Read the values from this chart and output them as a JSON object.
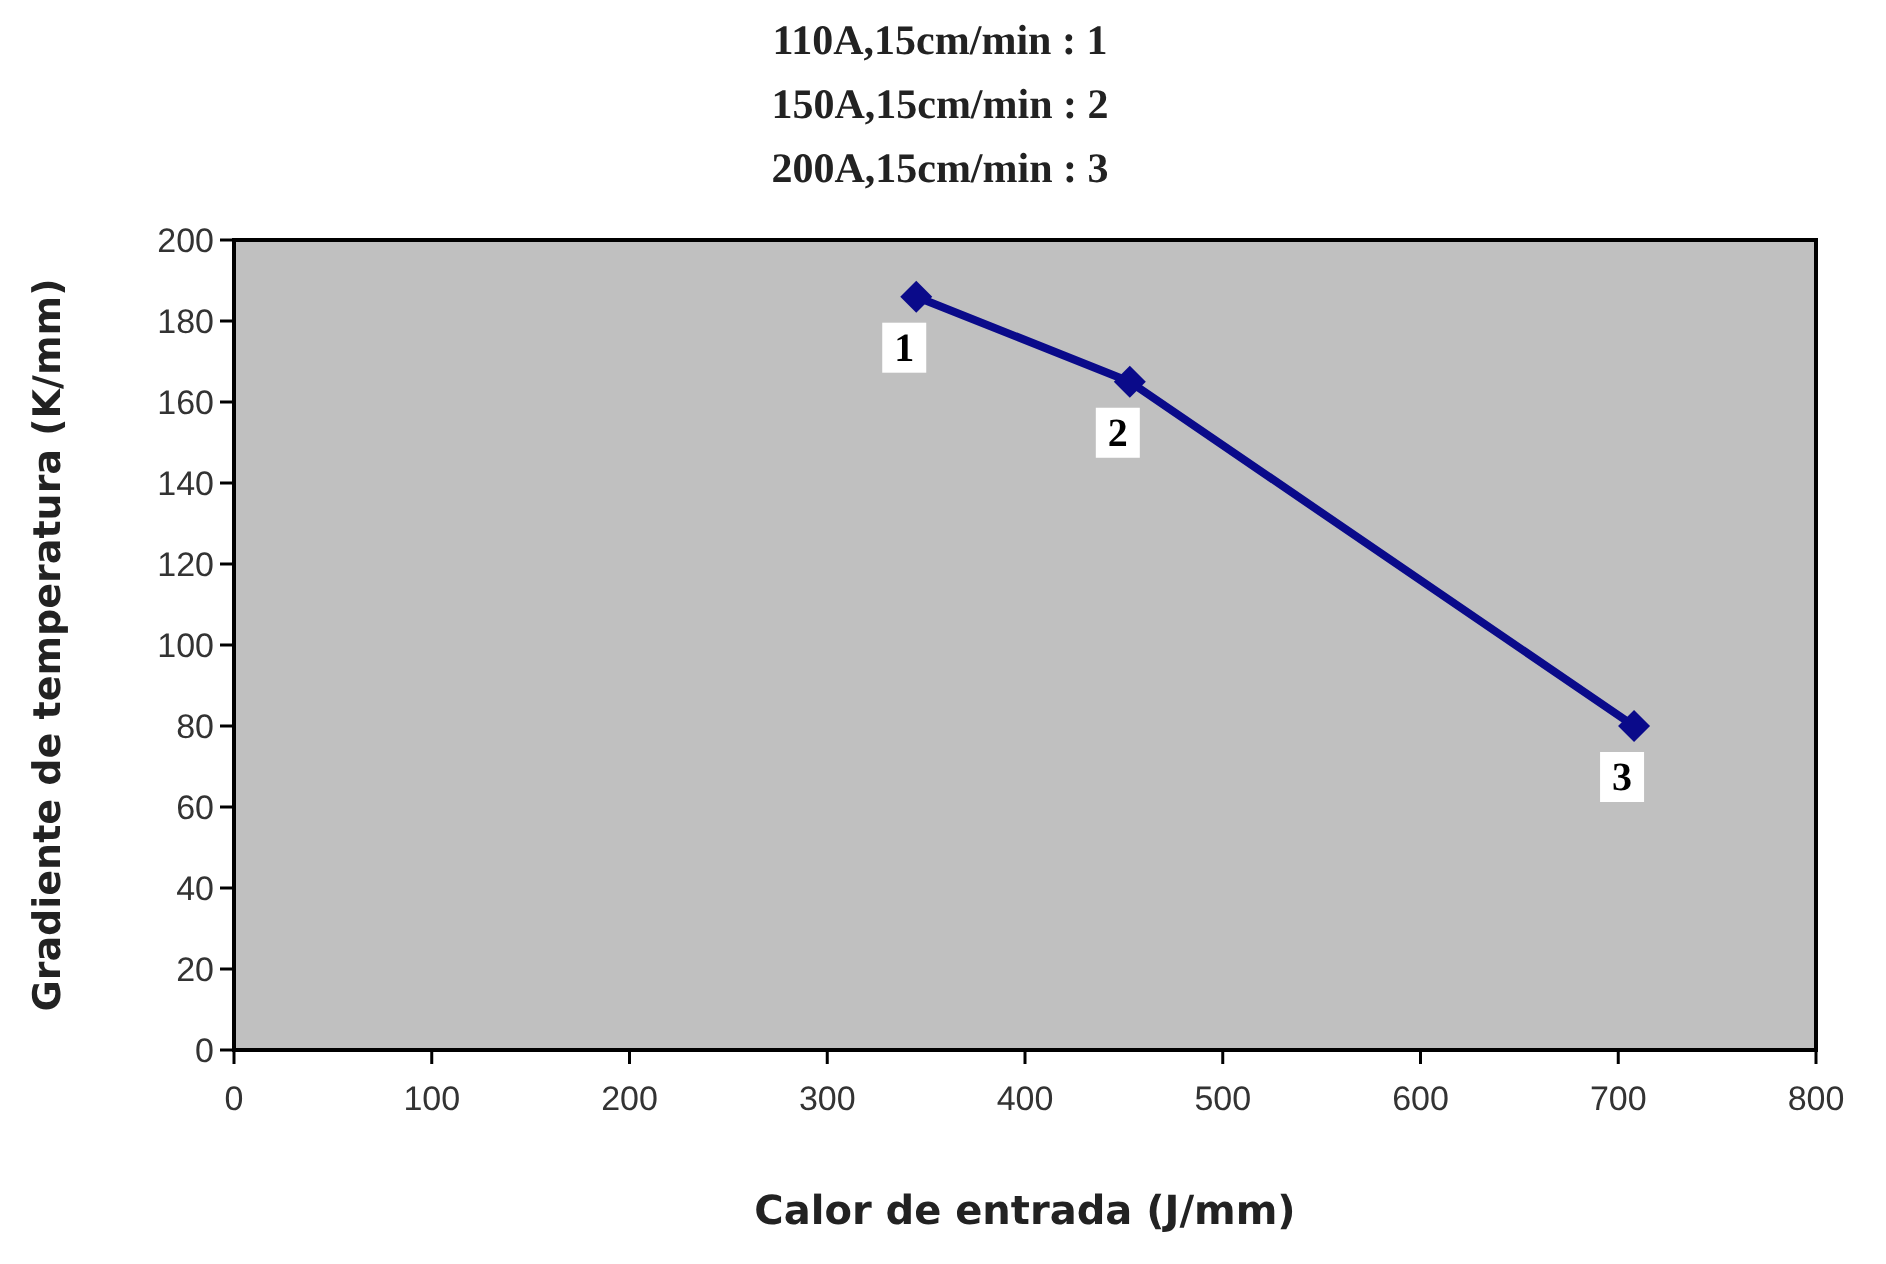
{
  "chart_data": {
    "type": "line",
    "title": "110A,15cm/min : 1\n150A,15cm/min : 2\n200A,15cm/min : 3",
    "xlabel": "Calor de entrada (J/mm)",
    "ylabel": "Gradiente de temperatura (K/mm)",
    "x": [
      345,
      453,
      708
    ],
    "series": [
      {
        "color": "#0a0a8a",
        "values": [
          186,
          165,
          80
        ]
      }
    ],
    "xlim": [
      0,
      800
    ],
    "xticks": [
      0,
      100,
      200,
      300,
      400,
      500,
      600,
      700,
      800
    ],
    "ylim": [
      0,
      200
    ],
    "yticks": [
      0,
      20,
      40,
      60,
      80,
      100,
      120,
      140,
      160,
      180,
      200
    ],
    "grid": false,
    "marker": "diamond",
    "line_style": "solid",
    "annotations": [
      {
        "text": "1",
        "x": 345,
        "y": 186
      },
      {
        "text": "2",
        "x": 453,
        "y": 165
      },
      {
        "text": "3",
        "x": 708,
        "y": 80
      }
    ]
  }
}
